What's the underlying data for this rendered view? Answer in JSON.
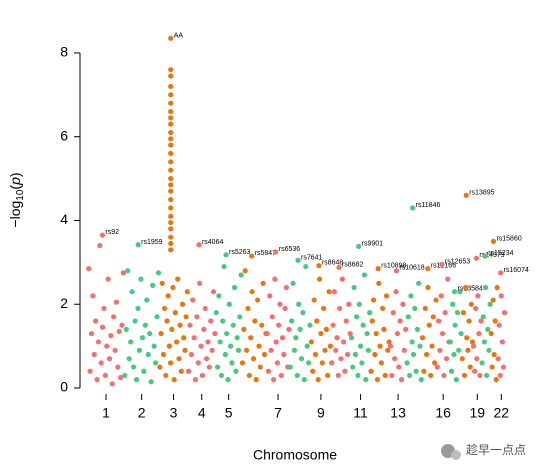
{
  "chart_data": {
    "type": "manhattan",
    "ylabel": [
      "−log",
      "10",
      "(",
      "p",
      ")"
    ],
    "xlabel": "Chromosome",
    "watermark": "趁早一点点",
    "ylim": [
      0,
      8.5
    ],
    "yticks": [
      0,
      2,
      4,
      6,
      8
    ],
    "chromosomes": [
      {
        "label": "1",
        "color": "#f86d6d",
        "values": [
          2.85,
          0.4,
          1.3,
          2.2,
          0.8,
          1.6,
          0.2,
          1.1,
          3.4,
          0.6,
          1.45,
          1.9,
          0.3,
          1.0,
          2.6,
          0.7,
          1.25,
          0.1,
          1.7,
          0.9,
          2.05,
          0.5,
          1.35,
          0.25,
          1.5,
          2.75
        ],
        "hits": [
          {
            "name": "rs92",
            "value": 3.65
          }
        ]
      },
      {
        "label": "2",
        "color": "#47c97f",
        "values": [
          0.3,
          1.4,
          2.8,
          0.7,
          1.1,
          2.3,
          0.5,
          1.6,
          0.2,
          1.9,
          0.9,
          2.6,
          1.2,
          0.4,
          1.5,
          2.1,
          0.8,
          1.3,
          0.15,
          2.45,
          1.0,
          0.6,
          1.7,
          2.75
        ],
        "hits": [
          {
            "name": "rs1959",
            "value": 3.42
          }
        ]
      },
      {
        "label": "3",
        "color": "#e8760c",
        "values": [
          0.5,
          1.3,
          2.5,
          0.8,
          1.9,
          0.3,
          1.6,
          2.2,
          1.0,
          0.6,
          1.4,
          2.4,
          0.2,
          1.8,
          1.1,
          2.6,
          0.7,
          1.5,
          0.4,
          2.0,
          1.2,
          0.9,
          1.7,
          2.3
        ],
        "peak": [
          7.6,
          7.45,
          7.2,
          7.0,
          6.8,
          6.6,
          6.45,
          6.3,
          6.1,
          5.95,
          5.8,
          5.6,
          5.4,
          5.2,
          5.0,
          4.85,
          4.7,
          4.5,
          4.3,
          4.1,
          3.95,
          3.8,
          3.6,
          3.45,
          3.3
        ],
        "hits": [
          {
            "name": "AA",
            "value": 8.35
          }
        ]
      },
      {
        "label": "4",
        "color": "#f86d6d",
        "values": [
          0.4,
          1.5,
          0.8,
          2.1,
          1.2,
          0.2,
          1.7,
          0.6,
          2.5,
          1.0,
          0.3,
          1.4,
          1.9,
          0.7,
          1.1,
          0.5,
          1.6,
          0.9,
          2.3,
          1.3
        ],
        "hits": [
          {
            "name": "rs4064",
            "value": 3.42
          }
        ]
      },
      {
        "label": "5",
        "color": "#47c97f",
        "values": [
          1.8,
          0.5,
          2.2,
          1.1,
          0.3,
          1.6,
          2.9,
          0.8,
          1.3,
          0.2,
          2.0,
          1.0,
          0.6,
          1.5,
          2.4,
          0.4,
          1.2,
          0.9,
          1.7,
          2.7
        ],
        "hits": [
          {
            "name": "rs5263",
            "value": 3.18
          }
        ]
      },
      {
        "label": null,
        "color": "#e8760c",
        "values": [
          0.6,
          1.4,
          2.8,
          0.9,
          1.9,
          0.3,
          1.2,
          2.3,
          0.7,
          1.6,
          0.2,
          2.1,
          1.0,
          0.5,
          1.5,
          2.5,
          0.8,
          1.3
        ],
        "hits": [
          {
            "name": "rs5847",
            "value": 3.15
          }
        ]
      },
      {
        "label": "7",
        "color": "#f86d6d",
        "values": [
          1.3,
          0.4,
          2.2,
          0.9,
          1.7,
          0.2,
          2.6,
          1.1,
          0.6,
          1.5,
          2.0,
          0.3,
          1.2,
          0.8,
          1.9,
          2.4,
          0.5,
          1.4
        ],
        "hits": [
          {
            "name": "rs6536",
            "value": 3.25
          }
        ]
      },
      {
        "label": null,
        "color": "#47c97f",
        "values": [
          0.5,
          1.6,
          2.5,
          0.9,
          1.2,
          0.3,
          2.0,
          1.4,
          0.7,
          1.8,
          0.2,
          2.9,
          1.0,
          0.6,
          1.5
        ],
        "hits": [
          {
            "name": "rs7641",
            "value": 3.05
          }
        ]
      },
      {
        "label": "9",
        "color": "#e8760c",
        "values": [
          1.1,
          0.4,
          2.1,
          0.8,
          1.6,
          0.2,
          2.6,
          1.3,
          0.6,
          1.9,
          0.9,
          1.4,
          0.3,
          2.3,
          1.0
        ],
        "hits": [
          {
            "name": "rs8648",
            "value": 2.92
          }
        ]
      },
      {
        "label": null,
        "color": "#f86d6d",
        "values": [
          0.6,
          1.5,
          2.3,
          0.9,
          1.2,
          0.3,
          1.9,
          0.7,
          2.6,
          1.1,
          0.4,
          1.6,
          0.8,
          2.0,
          1.3
        ],
        "hits": [
          {
            "name": "rs8682",
            "value": 2.88
          }
        ]
      },
      {
        "label": "11",
        "color": "#47c97f",
        "values": [
          1.2,
          0.5,
          2.4,
          0.8,
          1.7,
          0.3,
          2.0,
          1.0,
          0.6,
          1.5,
          2.7,
          0.2,
          1.3,
          0.9,
          1.8
        ],
        "hits": [
          {
            "name": "rs9901",
            "value": 3.38
          }
        ]
      },
      {
        "label": null,
        "color": "#e8760c",
        "values": [
          0.4,
          1.6,
          2.1,
          0.8,
          1.3,
          0.2,
          2.5,
          1.0,
          0.6,
          1.9,
          1.4,
          0.3,
          2.2,
          0.9,
          1.1
        ],
        "hits": [
          {
            "name": "rs10898",
            "value": 2.85
          }
        ]
      },
      {
        "label": "13",
        "color": "#f86d6d",
        "values": [
          1.0,
          0.3,
          1.8,
          0.7,
          2.3,
          1.3,
          0.5,
          1.6,
          0.2,
          2.0,
          0.9,
          1.4
        ],
        "hits": [
          {
            "name": "rs10618",
            "value": 2.8
          }
        ]
      },
      {
        "label": null,
        "color": "#47c97f",
        "values": [
          0.6,
          1.7,
          0.3,
          2.2,
          1.1,
          0.8,
          1.9,
          0.4,
          1.4,
          2.5,
          1.0,
          0.2
        ],
        "hits": [
          {
            "name": "rs11846",
            "value": 4.3
          }
        ]
      },
      {
        "label": null,
        "color": "#e8760c",
        "values": [
          1.2,
          0.4,
          1.9,
          0.8,
          2.4,
          1.5,
          0.3,
          1.0,
          1.7,
          0.6,
          2.1
        ],
        "hits": [
          {
            "name": "rs12166",
            "value": 2.85
          }
        ]
      },
      {
        "label": "16",
        "color": "#f86d6d",
        "values": [
          0.5,
          1.6,
          0.9,
          2.2,
          1.3,
          0.3,
          1.8,
          0.7,
          2.6,
          1.1
        ],
        "hits": [
          {
            "name": "rs12653",
            "value": 2.95
          }
        ]
      },
      {
        "label": null,
        "color": "#47c97f",
        "values": [
          1.1,
          0.4,
          2.0,
          0.8,
          1.5,
          0.2,
          1.8,
          0.9,
          2.3,
          1.3
        ],
        "hits": [
          {
            "name": "rs13584",
            "value": 2.3
          }
        ]
      },
      {
        "label": null,
        "color": "#e8760c",
        "values": [
          0.7,
          1.8,
          0.3,
          2.4,
          1.2,
          0.9,
          1.6,
          0.5,
          2.0,
          1.1
        ],
        "hits": [
          {
            "name": "rs13895",
            "value": 4.6
          }
        ]
      },
      {
        "label": "19",
        "color": "#f86d6d",
        "values": [
          1.0,
          0.4,
          1.9,
          0.7,
          2.2,
          1.3,
          0.3,
          1.6
        ],
        "hits": [
          {
            "name": "rs14379",
            "value": 3.1
          }
        ]
      },
      {
        "label": null,
        "color": "#47c97f",
        "values": [
          0.6,
          1.7,
          1.1,
          2.4,
          0.3,
          1.4,
          0.9,
          2.0
        ],
        "hits": [
          {
            "name": "rs15234",
            "value": 3.15
          }
        ]
      },
      {
        "label": null,
        "color": "#e8760c",
        "values": [
          1.3,
          0.5,
          2.1,
          0.8,
          1.6,
          0.2,
          2.4
        ],
        "hits": [
          {
            "name": "rs15860",
            "value": 3.5
          }
        ]
      },
      {
        "label": "22",
        "color": "#f86d6d",
        "values": [
          0.7,
          1.5,
          0.3,
          2.2,
          1.1,
          0.5,
          1.8
        ],
        "hits": [
          {
            "name": "rs16074",
            "value": 2.75
          }
        ]
      }
    ]
  }
}
